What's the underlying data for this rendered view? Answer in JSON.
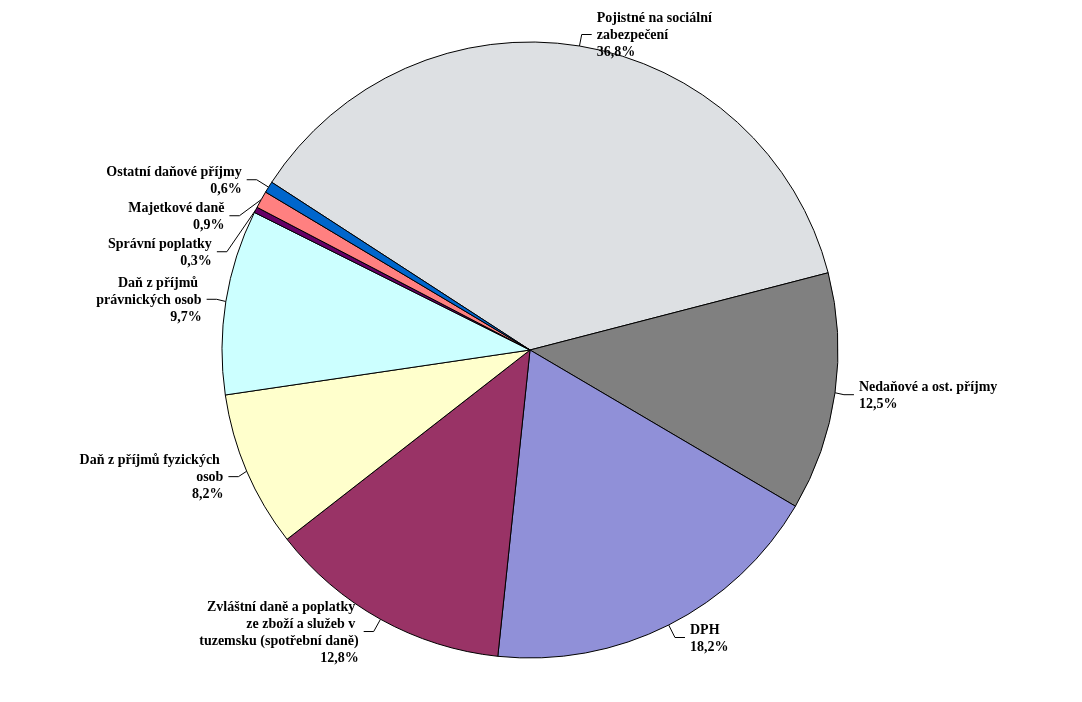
{
  "chart_data": {
    "type": "pie",
    "categories": [
      "Pojistné na sociální zabezpečení",
      "Nedaňové a ost. příjmy",
      "DPH",
      "Zvláštní daně a poplatky ze zboží a služeb v tuzemsku (spotřební daně)",
      "Daň z příjmů fyzických osob",
      "Daň z příjmů právnických osob",
      "Správní poplatky",
      "Majetkové daně",
      "Ostatní daňové příjmy"
    ],
    "values": [
      36.8,
      12.5,
      18.2,
      12.8,
      8.2,
      9.7,
      0.3,
      0.9,
      0.6
    ],
    "value_labels": [
      "36,8%",
      "12,5%",
      "18,2%",
      "12,8%",
      "8,2%",
      "9,7%",
      "0,3%",
      "0,9%",
      "0,6%"
    ],
    "colors": [
      "#dde0e3",
      "#808080",
      "#9090d8",
      "#993366",
      "#ffffcc",
      "#ccffff",
      "#660066",
      "#ff8080",
      "#0066cc"
    ],
    "legend": false
  }
}
